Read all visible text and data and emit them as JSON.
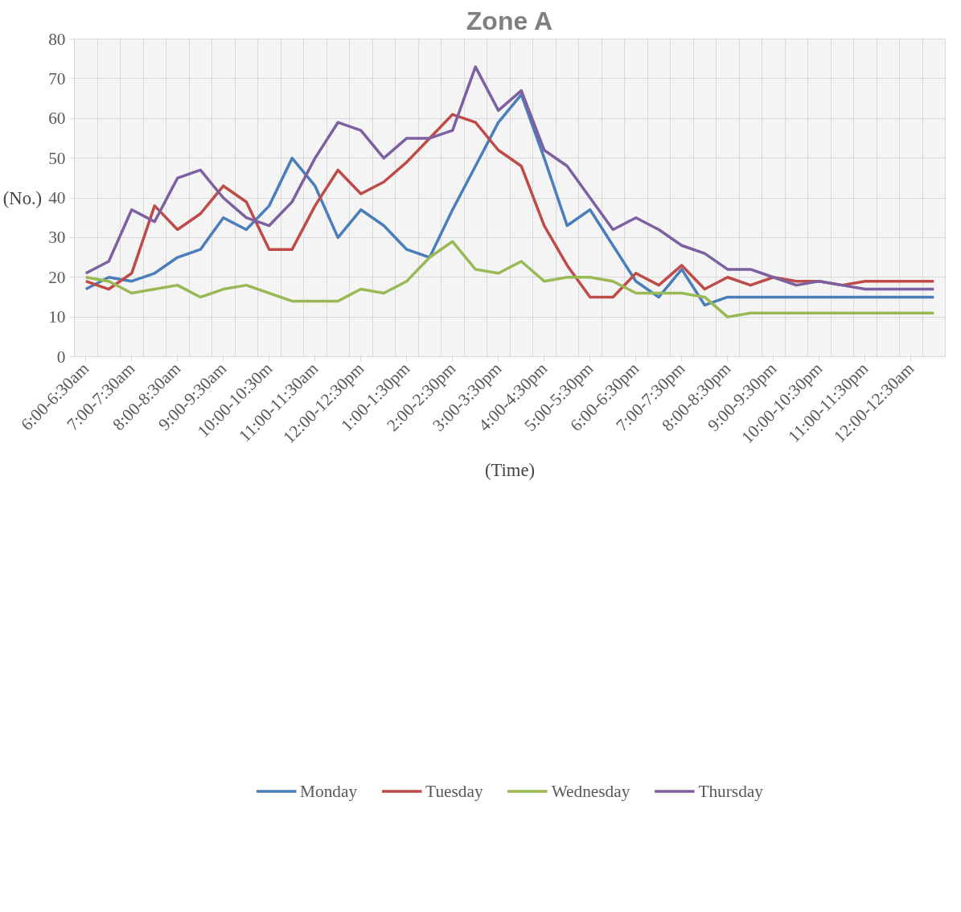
{
  "chart_data": {
    "type": "line",
    "title": "Zone A",
    "xlabel": "(Time)",
    "ylabel": "(No.)",
    "categories": [
      "6:00-6:30am",
      null,
      "7:00-7:30am",
      null,
      "8:00-8:30am",
      null,
      "9:00-9:30am",
      null,
      "10:00-10:30m",
      null,
      "11:00-11:30am",
      null,
      "12:00-12:30pm",
      null,
      "1:00-1:30pm",
      null,
      "2:00-2:30pm",
      null,
      "3:00-3:30pm",
      null,
      "4:00-4:30pm",
      null,
      "5:00-5:30pm",
      null,
      "6:00-6:30pm",
      null,
      "7:00-7:30pm",
      null,
      "8:00-8:30pm",
      null,
      "9:00-9:30pm",
      null,
      "10:00-10:30pm",
      null,
      "11:00-11:30pm",
      null,
      "12:00-12:30am",
      null
    ],
    "series": [
      {
        "name": "Monday",
        "color": "#4a7ebb",
        "values": [
          17,
          20,
          19,
          21,
          25,
          27,
          35,
          32,
          38,
          50,
          43,
          30,
          37,
          33,
          27,
          25,
          37,
          48,
          59,
          66,
          50,
          33,
          37,
          28,
          19,
          15,
          22,
          13,
          15,
          15,
          15,
          15,
          15,
          15,
          15,
          15,
          15,
          15
        ]
      },
      {
        "name": "Tuesday",
        "color": "#be4b48",
        "values": [
          19,
          17,
          21,
          38,
          32,
          36,
          43,
          39,
          27,
          27,
          38,
          47,
          41,
          44,
          49,
          55,
          61,
          59,
          52,
          48,
          33,
          23,
          15,
          15,
          21,
          18,
          23,
          17,
          20,
          18,
          20,
          19,
          19,
          18,
          19,
          19,
          19,
          19
        ]
      },
      {
        "name": "Wednesday",
        "color": "#98b954",
        "values": [
          20,
          19,
          16,
          17,
          18,
          15,
          17,
          18,
          16,
          14,
          14,
          14,
          17,
          16,
          19,
          25,
          29,
          22,
          21,
          24,
          19,
          20,
          20,
          19,
          16,
          16,
          16,
          15,
          10,
          11,
          11,
          11,
          11,
          11,
          11,
          11,
          11,
          11
        ]
      },
      {
        "name": "Thursday",
        "color": "#7d60a0",
        "values": [
          21,
          24,
          37,
          34,
          45,
          47,
          40,
          35,
          33,
          39,
          50,
          59,
          57,
          50,
          55,
          55,
          57,
          73,
          62,
          67,
          52,
          48,
          40,
          32,
          35,
          32,
          28,
          26,
          22,
          22,
          20,
          18,
          19,
          18,
          17,
          17,
          17,
          17
        ]
      }
    ],
    "ylim": [
      0,
      80
    ],
    "yticks": [
      0,
      10,
      20,
      30,
      40,
      50,
      60,
      70,
      80
    ],
    "grid": true,
    "legend": "bottom"
  }
}
